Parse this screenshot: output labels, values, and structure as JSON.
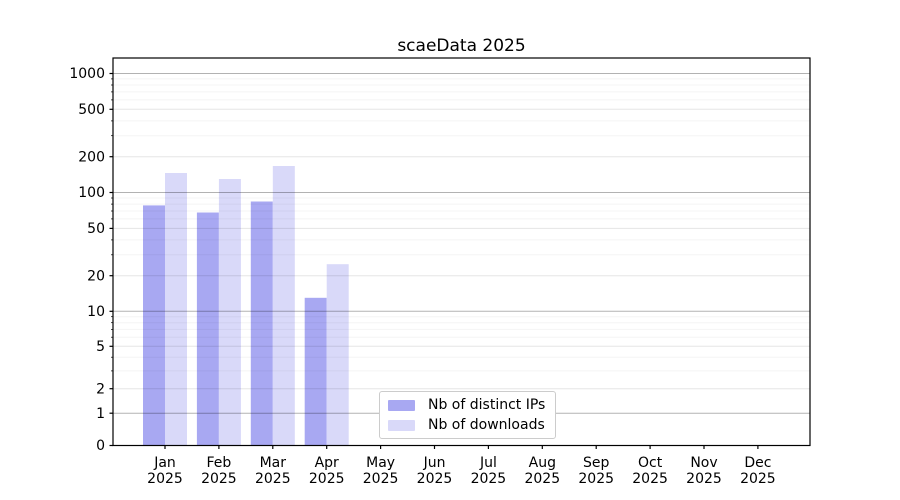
{
  "chart_data": {
    "type": "bar",
    "title": "scaeData 2025",
    "categories": [
      "Jan",
      "Feb",
      "Mar",
      "Apr",
      "May",
      "Jun",
      "Jul",
      "Aug",
      "Sep",
      "Oct",
      "Nov",
      "Dec"
    ],
    "year": "2025",
    "series": [
      {
        "name": "Nb of distinct IPs",
        "color": "#a8a8f2",
        "values": [
          78,
          68,
          84,
          13,
          0,
          0,
          0,
          0,
          0,
          0,
          0,
          0
        ]
      },
      {
        "name": "Nb of downloads",
        "color": "#d9d9f9",
        "values": [
          146,
          130,
          167,
          25,
          0,
          0,
          0,
          0,
          0,
          0,
          0,
          0
        ]
      }
    ],
    "y_axis": {
      "scale": "asinh-log",
      "ticks": [
        0,
        1,
        2,
        5,
        10,
        20,
        50,
        100,
        200,
        500,
        1000
      ],
      "top_value": 1350
    },
    "x_axis": {
      "tick_line1": [
        "Jan",
        "Feb",
        "Mar",
        "Apr",
        "May",
        "Jun",
        "Jul",
        "Aug",
        "Sep",
        "Oct",
        "Nov",
        "Dec"
      ],
      "tick_line2": "2025"
    },
    "legend": {
      "location": "lower-center",
      "border_color": "#cccccc"
    },
    "grid": "on",
    "colors": {
      "spine": "#000000",
      "major_grid": "rgba(0,0,0,0.30)",
      "secondary_grid": "rgba(0,0,0,0.10)",
      "minor_grid": "rgba(0,0,0,0.045)"
    }
  }
}
